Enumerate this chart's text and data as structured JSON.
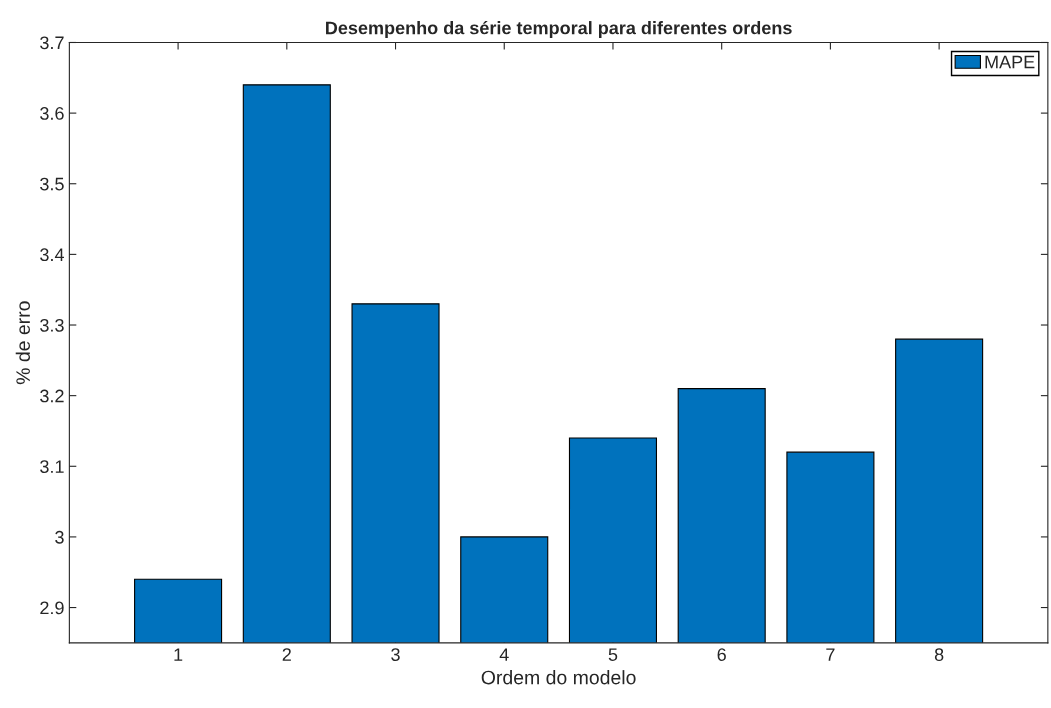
{
  "chart_data": {
    "type": "bar",
    "title": "Desempenho da série temporal para diferentes ordens",
    "xlabel": "Ordem do modelo",
    "ylabel": "% de erro",
    "categories": [
      "1",
      "2",
      "3",
      "4",
      "5",
      "6",
      "7",
      "8"
    ],
    "series": [
      {
        "name": "MAPE",
        "color": "#0072bd",
        "values": [
          2.94,
          3.64,
          3.33,
          3.0,
          3.14,
          3.21,
          3.12,
          3.28
        ]
      }
    ],
    "ylim": [
      2.85,
      3.7
    ],
    "yticks": [
      2.9,
      3,
      3.1,
      3.2,
      3.3,
      3.4,
      3.5,
      3.6,
      3.7
    ],
    "grid": false,
    "legend": "top right"
  }
}
